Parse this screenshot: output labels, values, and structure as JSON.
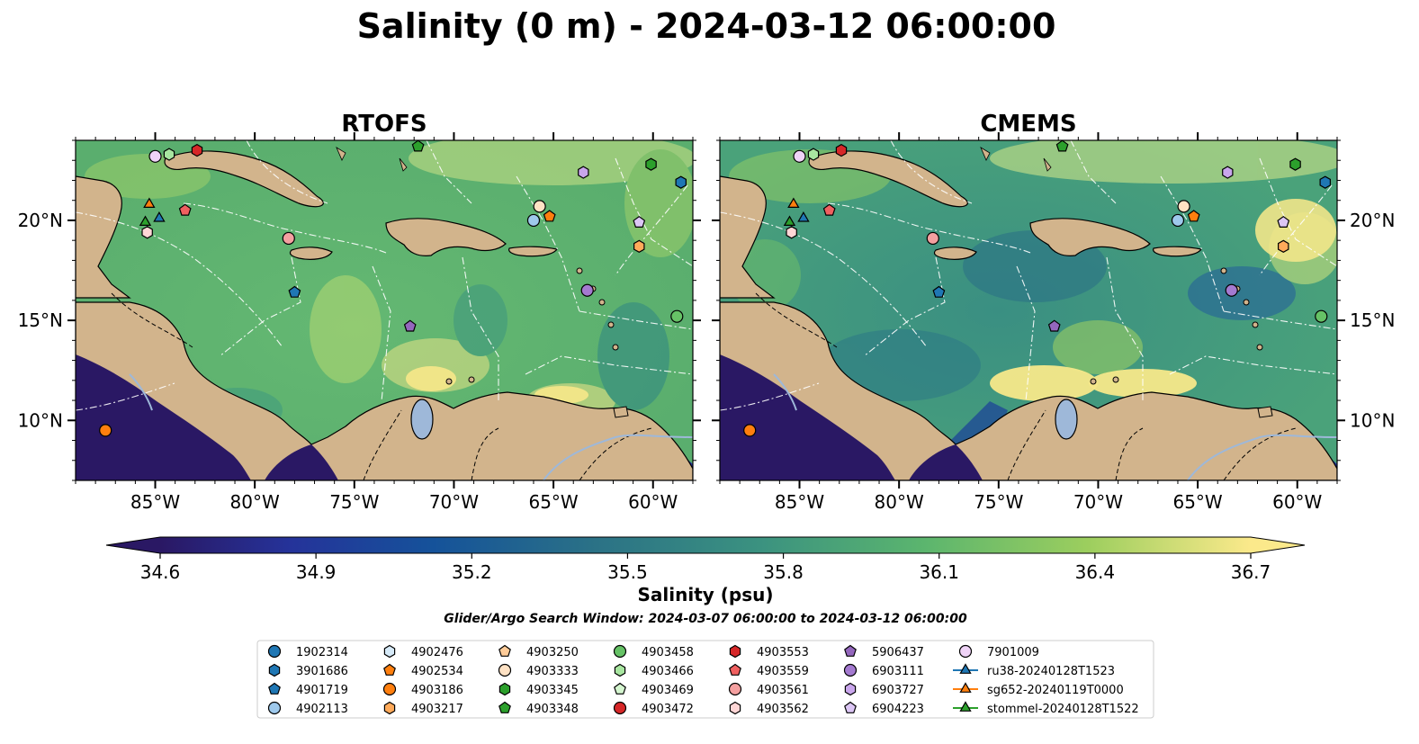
{
  "title": "Salinity (0 m) - 2024-03-12 06:00:00",
  "chart_data": {
    "type": "heatmap",
    "panels": [
      {
        "name": "RTOFS"
      },
      {
        "name": "CMEMS"
      }
    ],
    "lon_range": [
      -89,
      -58
    ],
    "lat_range": [
      7,
      24
    ],
    "x_ticks": [
      {
        "value": -85,
        "label": "85°W"
      },
      {
        "value": -80,
        "label": "80°W"
      },
      {
        "value": -75,
        "label": "75°W"
      },
      {
        "value": -70,
        "label": "70°W"
      },
      {
        "value": -65,
        "label": "65°W"
      },
      {
        "value": -60,
        "label": "60°W"
      }
    ],
    "y_ticks": [
      {
        "value": 20,
        "label": "20°N"
      },
      {
        "value": 15,
        "label": "15°N"
      },
      {
        "value": 10,
        "label": "10°N"
      }
    ],
    "colorbar": {
      "label": "Salinity (psu)",
      "min": 34.6,
      "max": 36.7,
      "extend": "both",
      "colormap": "haline",
      "ticks": [
        {
          "value": 34.6,
          "label": "34.6"
        },
        {
          "value": 34.9,
          "label": "34.9"
        },
        {
          "value": 35.2,
          "label": "35.2"
        },
        {
          "value": 35.5,
          "label": "35.5"
        },
        {
          "value": 35.8,
          "label": "35.8"
        },
        {
          "value": 36.1,
          "label": "36.1"
        },
        {
          "value": 36.4,
          "label": "36.4"
        },
        {
          "value": 36.7,
          "label": "36.7"
        }
      ]
    },
    "search_window": "Glider/Argo Search Window: 2024-03-07 06:00:00 to 2024-03-12 06:00:00",
    "observations": [
      {
        "id": "1902314",
        "marker": "circle",
        "color": "#1f77b4"
      },
      {
        "id": "3901686",
        "marker": "hexagon",
        "color": "#1f77b4"
      },
      {
        "id": "4901719",
        "marker": "pentagon",
        "color": "#1f77b4"
      },
      {
        "id": "4902113",
        "marker": "circle",
        "color": "#9ec9ec",
        "lon": -66.0,
        "lat": 20.0
      },
      {
        "id": "4902476",
        "marker": "hexagon",
        "color": "#d6eaf8"
      },
      {
        "id": "4902534",
        "marker": "pentagon",
        "color": "#ff7f0e",
        "lon": -65.2,
        "lat": 20.2
      },
      {
        "id": "4903186",
        "marker": "circle",
        "color": "#ff7f0e",
        "lon": -87.5,
        "lat": 9.5
      },
      {
        "id": "4903217",
        "marker": "hexagon",
        "color": "#ffaa5a",
        "lon": -60.7,
        "lat": 18.7
      },
      {
        "id": "4903250",
        "marker": "pentagon",
        "color": "#ffcc99"
      },
      {
        "id": "4903333",
        "marker": "circle",
        "color": "#ffe2c4",
        "lon": -65.7,
        "lat": 20.7
      },
      {
        "id": "4903345",
        "marker": "hexagon",
        "color": "#2ca02c",
        "lon": -60.1,
        "lat": 22.8
      },
      {
        "id": "4903348",
        "marker": "pentagon",
        "color": "#2ca02c",
        "lon": -71.8,
        "lat": 23.7
      },
      {
        "id": "4903458",
        "marker": "circle",
        "color": "#66c266"
      },
      {
        "id": "4903466",
        "marker": "hexagon",
        "color": "#a8e6a0",
        "lon": -84.3,
        "lat": 23.3
      },
      {
        "id": "4903469",
        "marker": "pentagon",
        "color": "#d4f5cf"
      },
      {
        "id": "4903472",
        "marker": "circle",
        "color": "#d62728"
      },
      {
        "id": "4903553",
        "marker": "hexagon",
        "color": "#d62728",
        "lon": -82.9,
        "lat": 23.5
      },
      {
        "id": "4903559",
        "marker": "pentagon",
        "color": "#f06060",
        "lon": -83.5,
        "lat": 20.5
      },
      {
        "id": "4903561",
        "marker": "circle",
        "color": "#f4a0a0",
        "lon": -78.3,
        "lat": 19.1
      },
      {
        "id": "4903562",
        "marker": "hexagon",
        "color": "#ffd6d6",
        "lon": -85.4,
        "lat": 19.4
      },
      {
        "id": "5906437",
        "marker": "pentagon",
        "color": "#9467bd",
        "lon": -72.2,
        "lat": 14.7
      },
      {
        "id": "6903111",
        "marker": "circle",
        "color": "#a47ad0",
        "lon": -63.3,
        "lat": 16.5
      },
      {
        "id": "6903727",
        "marker": "hexagon",
        "color": "#c9a6ec",
        "lon": -63.5,
        "lat": 22.4
      },
      {
        "id": "6904223",
        "marker": "pentagon",
        "color": "#dcc6f5",
        "lon": -60.7,
        "lat": 19.9
      },
      {
        "id": "7901009",
        "marker": "circle",
        "color": "#efd3f7",
        "lon": -85.0,
        "lat": 23.2
      },
      {
        "id": "ru38-20240128T1523",
        "marker": "triangle",
        "color": "#1f77b4",
        "line": true,
        "lon": -84.8,
        "lat": 20.1
      },
      {
        "id": "sg652-20240119T0000",
        "marker": "triangle",
        "color": "#ff7f0e",
        "line": true,
        "lon": -85.3,
        "lat": 20.8
      },
      {
        "id": "stommel-20240128T1522",
        "marker": "triangle",
        "color": "#2ca02c",
        "line": true,
        "lon": -85.5,
        "lat": 19.9
      },
      {
        "id": "4903250-b",
        "marker": "circle",
        "color": "#66c266",
        "lon": -58.8,
        "lat": 15.2
      },
      {
        "id": "4901719-b",
        "marker": "pentagon",
        "color": "#1f77b4",
        "lon": -78.0,
        "lat": 16.4
      },
      {
        "id": "3901686-b",
        "marker": "hexagon",
        "color": "#1f77b4",
        "lon": -58.6,
        "lat": 21.9
      }
    ]
  }
}
